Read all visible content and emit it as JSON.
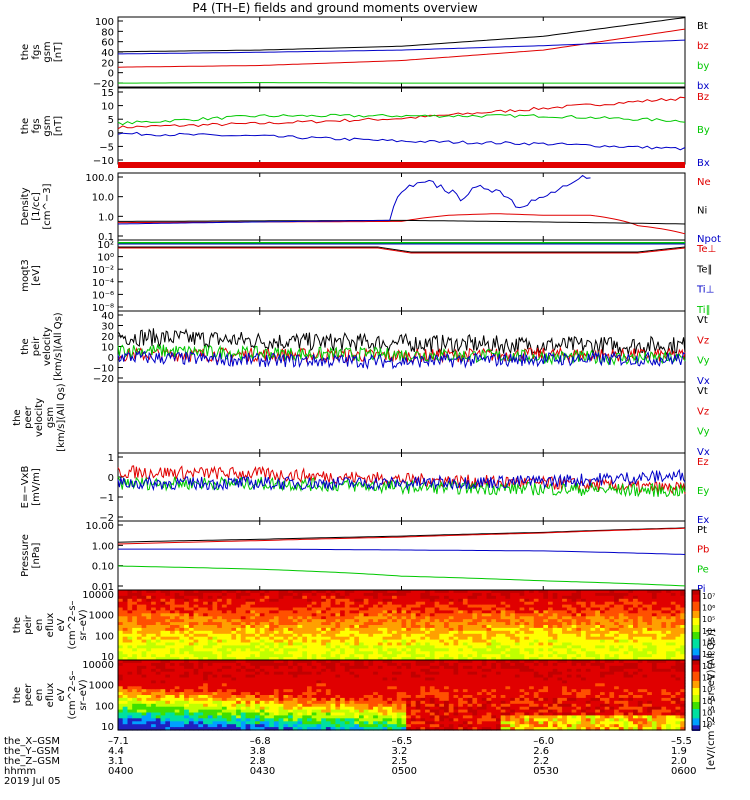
{
  "title": "P4 (TH–E) fields and ground moments overview",
  "footer": {
    "row_labels": [
      "the_X–GSM",
      "the_Y–GSM",
      "the_Z–GSM",
      "hhmm",
      "2019 Jul 05"
    ],
    "columns": [
      {
        "x": "–7.1",
        "y": "4.4",
        "z": "3.1",
        "hhmm": "0400"
      },
      {
        "x": "–6.8",
        "y": "3.8",
        "z": "2.8",
        "hhmm": "0430"
      },
      {
        "x": "–6.5",
        "y": "3.2",
        "z": "2.5",
        "hhmm": "0500"
      },
      {
        "x": "–6.0",
        "y": "2.6",
        "z": "2.2",
        "hhmm": "0530"
      },
      {
        "x": "–5.5",
        "y": "1.9",
        "z": "2.0",
        "hhmm": "0600"
      }
    ]
  },
  "colors": {
    "black": "#000000",
    "red": "#e00000",
    "green": "#00c800",
    "blue": "#0000c8"
  },
  "colorbar_label": "[eV/(cm^2–s–sr–eV)(All Qs)]",
  "chart_data": [
    {
      "type": "line",
      "id": "fgs-gsm",
      "ylabel": [
        "the",
        "fgs",
        "gsm",
        "[nT]"
      ],
      "yticks": [
        "100",
        "80",
        "60",
        "40",
        "20",
        "0",
        "−20"
      ],
      "ylim": [
        -22,
        105
      ],
      "x": [
        0,
        30,
        60,
        90,
        120
      ],
      "series": [
        {
          "name": "Bt",
          "color": "black",
          "values": [
            42,
            45,
            52,
            70,
            104
          ]
        },
        {
          "name": "bz",
          "color": "red",
          "values": [
            14,
            17,
            26,
            45,
            83
          ]
        },
        {
          "name": "by",
          "color": "green",
          "values": [
            -15,
            -14,
            -15,
            -15,
            -15
          ]
        },
        {
          "name": "bx",
          "color": "blue",
          "values": [
            38,
            41,
            45,
            53,
            63
          ]
        }
      ]
    },
    {
      "type": "line",
      "id": "fgs-gsm-2",
      "ylabel": [
        "the",
        "fgs",
        "gsm",
        "[nT]"
      ],
      "yticks": [
        "15",
        "10",
        "5",
        "0",
        "−5",
        "−10"
      ],
      "ylim": [
        -14,
        16
      ],
      "x": [
        0,
        30,
        60,
        90,
        120
      ],
      "series": [
        {
          "name": "Bz",
          "color": "red",
          "values": [
            0.5,
            2,
            4,
            8,
            12
          ]
        },
        {
          "name": "By",
          "color": "green",
          "values": [
            2,
            5,
            5,
            5,
            3
          ]
        },
        {
          "name": "Bx",
          "color": "blue",
          "values": [
            -2,
            -3,
            -5,
            -6,
            -8
          ]
        }
      ]
    },
    {
      "type": "line",
      "id": "density",
      "ylabel": [
        "Density",
        "[1/cc]",
        "[cm^−3]"
      ],
      "yticks": [
        "100.0",
        "10.0",
        "1.0",
        "0.1"
      ],
      "log": true,
      "ylim": [
        0.1,
        180
      ],
      "series": [
        {
          "name": "Ne",
          "color": "red",
          "x": [
            0,
            60,
            70,
            80,
            90,
            100,
            110,
            120
          ],
          "values": [
            0.7,
            0.8,
            1.6,
            1.9,
            1.6,
            1.6,
            0.5,
            0.2
          ]
        },
        {
          "name": "Ni",
          "color": "black",
          "x": [
            0,
            60,
            120
          ],
          "values": [
            0.8,
            0.9,
            0.6
          ]
        },
        {
          "name": "Npot",
          "color": "blue",
          "x": [
            0,
            58,
            62,
            66,
            72,
            78,
            84,
            90,
            96,
            100
          ],
          "values": [
            0.6,
            0.9,
            40,
            60,
            10,
            40,
            5,
            10,
            40,
            160
          ]
        }
      ]
    },
    {
      "type": "line",
      "id": "moqt3",
      "ylabel": [
        "moqt3",
        "[eV]"
      ],
      "yticks": [
        "10²",
        "10⁰",
        "10⁻²",
        "10⁻⁴",
        "10⁻⁶",
        "10⁻⁸"
      ],
      "legend": [
        "Te⊥",
        "Te∥",
        "Ti⊥",
        "Ti∥"
      ],
      "legend_colors": [
        "red",
        "black",
        "blue",
        "green"
      ]
    },
    {
      "type": "line",
      "id": "peir-velocity",
      "ylabel": [
        "the",
        "peir",
        "velocity",
        "[km/s](All Qs)"
      ],
      "yticks": [
        "40",
        "30",
        "20",
        "10",
        "0",
        "−10",
        "−20"
      ],
      "ylim": [
        -22,
        40
      ],
      "x": [
        0,
        30,
        60,
        90,
        120
      ],
      "series": [
        {
          "name": "Vt",
          "color": "black",
          "values": [
            18,
            14,
            12,
            10,
            10
          ]
        },
        {
          "name": "Vz",
          "color": "red",
          "values": [
            2,
            2,
            1,
            2,
            1
          ]
        },
        {
          "name": "Vy",
          "color": "green",
          "values": [
            6,
            3,
            2,
            0,
            -2
          ]
        },
        {
          "name": "Vx",
          "color": "blue",
          "values": [
            0,
            -3,
            -4,
            -2,
            -2
          ]
        }
      ]
    },
    {
      "type": "line",
      "id": "peer-velocity",
      "ylabel": [
        "the",
        "peer",
        "velocity",
        "gsm",
        "[km/s](All Qs)"
      ],
      "yticks": [],
      "legend": [
        "Vt",
        "Vz",
        "Vy",
        "Vx"
      ],
      "legend_colors": [
        "black",
        "red",
        "green",
        "blue"
      ]
    },
    {
      "type": "line",
      "id": "efield",
      "ylabel": [
        "E=−VxB",
        "[mV/m]"
      ],
      "yticks": [
        "1",
        "0",
        "−1",
        "−2"
      ],
      "ylim": [
        -2,
        1.6
      ],
      "x": [
        0,
        30,
        60,
        90,
        120
      ],
      "series": [
        {
          "name": "Ez",
          "color": "red",
          "values": [
            0.6,
            0.5,
            0.2,
            0,
            -0.3
          ]
        },
        {
          "name": "Ey",
          "color": "green",
          "values": [
            0,
            0,
            -0.2,
            -0.3,
            -0.4
          ]
        },
        {
          "name": "Ex",
          "color": "blue",
          "values": [
            0,
            0,
            0,
            0.1,
            0.4
          ]
        }
      ]
    },
    {
      "type": "line",
      "id": "pressure",
      "ylabel": [
        "Pressure",
        "[nPa]"
      ],
      "yticks": [
        "10.00",
        "1.00",
        "0.10",
        "0.01"
      ],
      "log": true,
      "ylim": [
        0.01,
        10
      ],
      "x": [
        0,
        30,
        60,
        90,
        120
      ],
      "series": [
        {
          "name": "Pt",
          "color": "black",
          "values": [
            1.2,
            1.6,
            2.2,
            3.2,
            5
          ]
        },
        {
          "name": "Pb",
          "color": "red",
          "values": [
            1.0,
            1.4,
            2.0,
            3.0,
            4.8
          ]
        },
        {
          "name": "Pe",
          "color": "green",
          "values": [
            0.11,
            0.08,
            0.04,
            0.025,
            0.015
          ]
        },
        {
          "name": "Pi",
          "color": "blue",
          "values": [
            0.6,
            0.6,
            0.55,
            0.5,
            0.35
          ]
        }
      ]
    },
    {
      "type": "heatmap",
      "id": "peir-eflux",
      "ylabel": [
        "the",
        "peir",
        "en",
        "eflux",
        "eV",
        "(cm^2–s–",
        "sr–eV)"
      ],
      "yticks": [
        "10000",
        "1000",
        "100",
        "10"
      ],
      "cbar_ticks": [
        "10⁷",
        "10⁶",
        "10⁵",
        "10⁴",
        "10³",
        "10²"
      ]
    },
    {
      "type": "heatmap",
      "id": "peer-eflux",
      "ylabel": [
        "the",
        "peer",
        "en",
        "eflux",
        "eV",
        "(cm^2–s–",
        "sr–eV)"
      ],
      "yticks": [
        "10000",
        "1000",
        "100",
        "10"
      ],
      "cbar_ticks": [
        "10⁷",
        "10⁶",
        "10⁵",
        "10⁴",
        "10³",
        "10²"
      ]
    }
  ]
}
